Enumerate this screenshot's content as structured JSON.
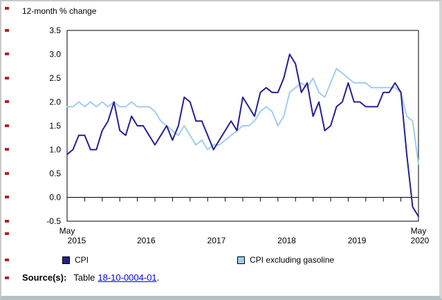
{
  "chart_data": {
    "type": "line",
    "title": "",
    "ylabel": "12-month % change",
    "xlabel": "",
    "ylim": [
      -0.5,
      3.5
    ],
    "yticks": [
      3.5,
      3.0,
      2.5,
      2.0,
      1.5,
      1.0,
      0.5,
      0.0,
      -0.5
    ],
    "grid": false,
    "legend_position": "bottom",
    "x": [
      "2015-05",
      "2015-06",
      "2015-07",
      "2015-08",
      "2015-09",
      "2015-10",
      "2015-11",
      "2015-12",
      "2016-01",
      "2016-02",
      "2016-03",
      "2016-04",
      "2016-05",
      "2016-06",
      "2016-07",
      "2016-08",
      "2016-09",
      "2016-10",
      "2016-11",
      "2016-12",
      "2017-01",
      "2017-02",
      "2017-03",
      "2017-04",
      "2017-05",
      "2017-06",
      "2017-07",
      "2017-08",
      "2017-09",
      "2017-10",
      "2017-11",
      "2017-12",
      "2018-01",
      "2018-02",
      "2018-03",
      "2018-04",
      "2018-05",
      "2018-06",
      "2018-07",
      "2018-08",
      "2018-09",
      "2018-10",
      "2018-11",
      "2018-12",
      "2019-01",
      "2019-02",
      "2019-03",
      "2019-04",
      "2019-05",
      "2019-06",
      "2019-07",
      "2019-08",
      "2019-09",
      "2019-10",
      "2019-11",
      "2019-12",
      "2020-01",
      "2020-02",
      "2020-03",
      "2020-04",
      "2020-05"
    ],
    "xticks": [
      {
        "top": "May",
        "bottom": "2015",
        "index": 0
      },
      {
        "top": "",
        "bottom": "2016",
        "index": 13.5
      },
      {
        "top": "",
        "bottom": "2017",
        "index": 25.5
      },
      {
        "top": "",
        "bottom": "2018",
        "index": 37.5
      },
      {
        "top": "",
        "bottom": "2019",
        "index": 49.5
      },
      {
        "top": "May",
        "bottom": "2020",
        "index": 60
      }
    ],
    "series": [
      {
        "name": "CPI",
        "color": "#241f8f",
        "values": [
          0.9,
          1.0,
          1.3,
          1.3,
          1.0,
          1.0,
          1.4,
          1.6,
          2.0,
          1.4,
          1.3,
          1.7,
          1.5,
          1.5,
          1.3,
          1.1,
          1.3,
          1.5,
          1.2,
          1.5,
          2.1,
          2.0,
          1.6,
          1.6,
          1.3,
          1.0,
          1.2,
          1.4,
          1.6,
          1.4,
          2.1,
          1.9,
          1.7,
          2.2,
          2.3,
          2.2,
          2.2,
          2.5,
          3.0,
          2.8,
          2.2,
          2.4,
          1.7,
          2.0,
          1.4,
          1.5,
          1.9,
          2.0,
          2.4,
          2.0,
          2.0,
          1.9,
          1.9,
          1.9,
          2.2,
          2.2,
          2.4,
          2.2,
          0.9,
          -0.2,
          -0.4
        ]
      },
      {
        "name": "CPI excluding gasoline",
        "color": "#a0cdf0",
        "values": [
          1.9,
          1.9,
          2.0,
          1.9,
          2.0,
          1.9,
          2.0,
          1.9,
          2.0,
          1.9,
          1.9,
          2.0,
          1.9,
          1.9,
          1.9,
          1.8,
          1.6,
          1.5,
          1.4,
          1.3,
          1.5,
          1.3,
          1.1,
          1.2,
          1.0,
          1.1,
          1.1,
          1.2,
          1.3,
          1.4,
          1.5,
          1.5,
          1.6,
          1.8,
          1.9,
          1.8,
          1.5,
          1.7,
          2.2,
          2.3,
          2.4,
          2.3,
          2.5,
          2.2,
          2.1,
          2.4,
          2.7,
          2.6,
          2.5,
          2.4,
          2.4,
          2.4,
          2.3,
          2.3,
          2.3,
          2.3,
          2.3,
          2.2,
          1.7,
          1.6,
          0.7
        ]
      }
    ]
  },
  "source": {
    "label": "Source(s):",
    "table_text": "Table",
    "link_text": "18-10-0004-01",
    "suffix": "."
  }
}
